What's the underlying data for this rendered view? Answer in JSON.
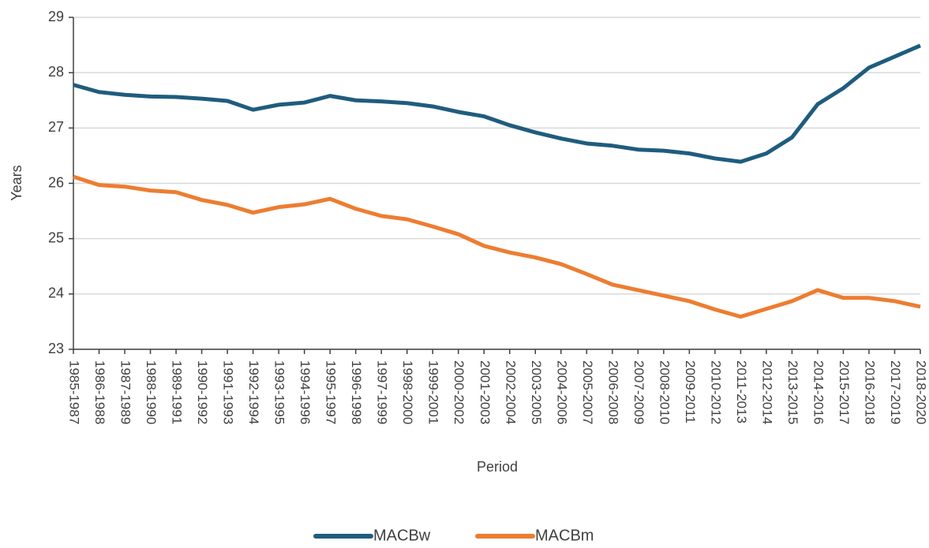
{
  "chart_data": {
    "type": "line",
    "x_label": "Period",
    "y_label": "Years",
    "categories": [
      "1985-1987",
      "1986-1988",
      "1987-1989",
      "1988-1990",
      "1989-1991",
      "1990-1992",
      "1991-1993",
      "1992-1994",
      "1993-1995",
      "1994-1996",
      "1995-1997",
      "1996-1998",
      "1997-1999",
      "1998-2000",
      "1999-2001",
      "2000-2002",
      "2001-2003",
      "2002-2004",
      "2003-2005",
      "2004-2006",
      "2005-2007",
      "2006-2008",
      "2007-2009",
      "2008-2010",
      "2009-2011",
      "2010-2012",
      "2011-2013",
      "2012-2014",
      "2013-2015",
      "2014-2016",
      "2015-2017",
      "2016-2018",
      "2017-2019",
      "2018-2020"
    ],
    "series": [
      {
        "name": "MACBw",
        "color": "#1f5c7e",
        "values": [
          27.78,
          27.65,
          27.6,
          27.57,
          27.56,
          27.53,
          27.49,
          27.33,
          27.42,
          27.46,
          27.58,
          27.5,
          27.48,
          27.45,
          27.39,
          27.29,
          27.21,
          27.05,
          26.92,
          26.81,
          26.72,
          26.68,
          26.61,
          26.59,
          26.54,
          26.45,
          26.39,
          26.54,
          26.83,
          27.43,
          27.72,
          28.09,
          28.29,
          28.49
        ]
      },
      {
        "name": "MACBm",
        "color": "#ed7d31",
        "values": [
          26.12,
          25.97,
          25.94,
          25.87,
          25.84,
          25.7,
          25.61,
          25.47,
          25.57,
          25.62,
          25.72,
          25.54,
          25.41,
          25.35,
          25.22,
          25.08,
          24.87,
          24.75,
          24.66,
          24.54,
          24.36,
          24.17,
          24.07,
          23.97,
          23.87,
          23.72,
          23.59,
          23.73,
          23.87,
          24.07,
          23.93,
          23.93,
          23.87,
          23.77
        ]
      }
    ],
    "ylim": [
      23,
      29
    ],
    "yticks": [
      23,
      24,
      25,
      26,
      27,
      28,
      29
    ],
    "grid": true,
    "legend": "bottom"
  }
}
